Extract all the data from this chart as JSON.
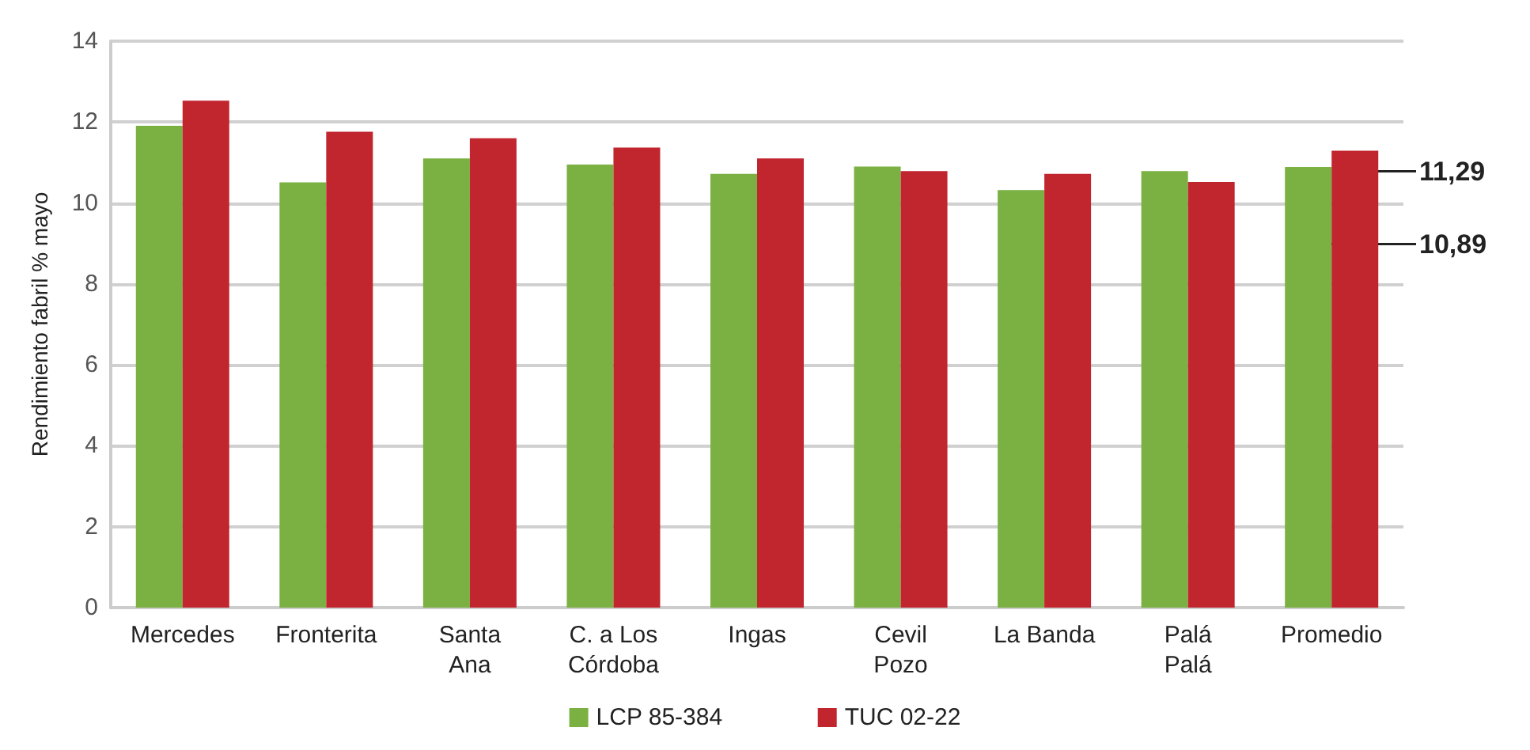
{
  "chart_data": {
    "type": "bar",
    "ylabel": "Rendimiento fabril % mayo",
    "categories": [
      "Mercedes",
      "Fronterita",
      "Santa\nAna",
      "C. a Los\nCórdoba",
      "Ingas",
      "Cevil\nPozo",
      "La Banda",
      "Palá\nPalá",
      "Promedio"
    ],
    "series": [
      {
        "name": "LCP 85-384",
        "color": "#7ab142",
        "values": [
          11.91,
          10.51,
          11.1,
          10.95,
          10.72,
          10.9,
          10.32,
          10.79,
          10.89
        ]
      },
      {
        "name": "TUC 02-22",
        "color": "#c1262f",
        "values": [
          12.53,
          11.76,
          11.6,
          11.37,
          11.1,
          10.79,
          10.72,
          10.52,
          11.29
        ]
      }
    ],
    "ylim": [
      0,
      14
    ],
    "yticks": [
      0,
      2,
      4,
      6,
      8,
      10,
      12,
      14
    ],
    "grid": "y",
    "legend": "bottom",
    "annotations": [
      "11,29",
      "10,89"
    ]
  }
}
